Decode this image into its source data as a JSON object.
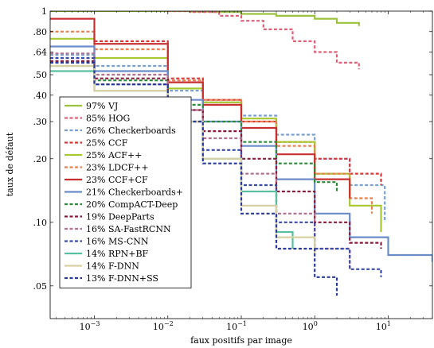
{
  "chart_data": {
    "type": "line",
    "xlabel": "faux positifs par image",
    "ylabel": "taux de défaut",
    "xscale": "log",
    "yscale": "log",
    "xlim": [
      0.00025,
      40
    ],
    "ylim": [
      0.035,
      1
    ],
    "x_ticks": [
      {
        "value": 0.001,
        "base": "10",
        "exp": "−3"
      },
      {
        "value": 0.01,
        "base": "10",
        "exp": "−2"
      },
      {
        "value": 0.1,
        "base": "10",
        "exp": "−1"
      },
      {
        "value": 1,
        "base": "10",
        "exp": "0"
      },
      {
        "value": 10,
        "base": "10",
        "exp": "1"
      }
    ],
    "y_ticks": [
      {
        "value": 1,
        "label": "1"
      },
      {
        "value": 0.8,
        "label": ".80"
      },
      {
        "value": 0.64,
        "label": ".64"
      },
      {
        "value": 0.5,
        "label": ".50"
      },
      {
        "value": 0.4,
        "label": ".40"
      },
      {
        "value": 0.3,
        "label": ".30"
      },
      {
        "value": 0.2,
        "label": ".20"
      },
      {
        "value": 0.1,
        "label": ".10"
      },
      {
        "value": 0.05,
        "label": ".05"
      }
    ],
    "legend_position": "lower-left",
    "grid": false,
    "series": [
      {
        "name": "97% VJ",
        "color": "#9bc23c",
        "dashed": false,
        "x": [
          0.00025,
          0.001,
          0.01,
          0.02,
          0.04,
          0.1,
          0.3,
          1,
          2,
          4
        ],
        "y": [
          1,
          1,
          1,
          0.995,
          0.99,
          0.97,
          0.95,
          0.92,
          0.88,
          0.85
        ]
      },
      {
        "name": "85% HOG",
        "color": "#e06078",
        "dashed": true,
        "x": [
          0.01,
          0.02,
          0.05,
          0.1,
          0.2,
          0.5,
          1,
          2,
          4
        ],
        "y": [
          1,
          0.99,
          0.95,
          0.9,
          0.82,
          0.72,
          0.64,
          0.57,
          0.53
        ]
      },
      {
        "name": "26% Checkerboards",
        "color": "#7aa0d0",
        "dashed": true,
        "x": [
          0.00025,
          0.001,
          0.01,
          0.03,
          0.1,
          0.3,
          1,
          3,
          9
        ],
        "y": [
          0.62,
          0.55,
          0.42,
          0.37,
          0.32,
          0.26,
          0.2,
          0.15,
          0.1
        ]
      },
      {
        "name": "25% CCF",
        "color": "#d83838",
        "dashed": true,
        "x": [
          0.001,
          0.01,
          0.03,
          0.1,
          0.3,
          1,
          3,
          8
        ],
        "y": [
          0.72,
          0.48,
          0.38,
          0.3,
          0.24,
          0.2,
          0.17,
          0.15
        ]
      },
      {
        "name": "25% ACF++",
        "color": "#a8c830",
        "dashed": false,
        "x": [
          0.00025,
          0.001,
          0.01,
          0.03,
          0.1,
          0.3,
          1,
          3,
          8
        ],
        "y": [
          0.74,
          0.6,
          0.43,
          0.37,
          0.31,
          0.24,
          0.17,
          0.12,
          0.09
        ]
      },
      {
        "name": "23% LDCF++",
        "color": "#e88050",
        "dashed": true,
        "x": [
          0.00025,
          0.001,
          0.01,
          0.03,
          0.1,
          0.3,
          1,
          3,
          6
        ],
        "y": [
          0.8,
          0.66,
          0.47,
          0.38,
          0.3,
          0.23,
          0.17,
          0.13,
          0.11
        ]
      },
      {
        "name": "23% CCF+CF",
        "color": "#c83030",
        "dashed": false,
        "x": [
          0.00025,
          0.001,
          0.01,
          0.03,
          0.1,
          0.3,
          1,
          3
        ],
        "y": [
          0.92,
          0.7,
          0.46,
          0.36,
          0.28,
          0.21,
          0.16,
          0.13
        ]
      },
      {
        "name": "21% Checkerboards+",
        "color": "#6a8cc8",
        "dashed": false,
        "x": [
          0.00025,
          0.001,
          0.01,
          0.03,
          0.1,
          0.3,
          1,
          3,
          10,
          40
        ],
        "y": [
          0.68,
          0.52,
          0.38,
          0.3,
          0.23,
          0.16,
          0.11,
          0.085,
          0.07,
          0.065
        ]
      },
      {
        "name": "20% CompACT-Deep",
        "color": "#2a8a3a",
        "dashed": true,
        "x": [
          0.00025,
          0.001,
          0.01,
          0.03,
          0.1,
          0.3,
          1,
          2
        ],
        "y": [
          0.55,
          0.47,
          0.36,
          0.3,
          0.24,
          0.19,
          0.155,
          0.14
        ]
      },
      {
        "name": "19% DeepParts",
        "color": "#8a1a3a",
        "dashed": true,
        "x": [
          0.00025,
          0.001,
          0.01,
          0.03,
          0.1,
          0.3,
          1,
          3,
          8
        ],
        "y": [
          0.58,
          0.48,
          0.34,
          0.27,
          0.2,
          0.14,
          0.1,
          0.08,
          0.075
        ]
      },
      {
        "name": "16% SA-FastRCNN",
        "color": "#b07090",
        "dashed": true,
        "x": [
          0.00025,
          0.001,
          0.01,
          0.03,
          0.1,
          0.3,
          1,
          3
        ],
        "y": [
          0.63,
          0.5,
          0.34,
          0.25,
          0.17,
          0.11,
          0.075,
          0.06
        ]
      },
      {
        "name": "16% MS-CNN",
        "color": "#3a4aa8",
        "dashed": true,
        "x": [
          0.00025,
          0.001,
          0.01,
          0.03,
          0.1,
          0.3,
          1,
          3,
          8
        ],
        "y": [
          0.6,
          0.45,
          0.3,
          0.22,
          0.15,
          0.1,
          0.075,
          0.06,
          0.055
        ]
      },
      {
        "name": "14% RPN+BF",
        "color": "#58c0a0",
        "dashed": false,
        "x": [
          0.00025,
          0.001,
          0.01,
          0.03,
          0.1,
          0.3,
          0.5
        ],
        "y": [
          0.52,
          0.42,
          0.3,
          0.2,
          0.14,
          0.09,
          0.075
        ]
      },
      {
        "name": "14% F-DNN",
        "color": "#d8d0a0",
        "dashed": false,
        "x": [
          0.00025,
          0.001,
          0.01,
          0.03,
          0.1,
          0.3,
          1
        ],
        "y": [
          0.55,
          0.42,
          0.3,
          0.2,
          0.12,
          0.085,
          0.07
        ]
      },
      {
        "name": "13% F-DNN+SS",
        "color": "#2a3a98",
        "dashed": true,
        "x": [
          0.00025,
          0.001,
          0.01,
          0.03,
          0.1,
          0.3,
          1,
          2
        ],
        "y": [
          0.57,
          0.45,
          0.3,
          0.19,
          0.11,
          0.075,
          0.055,
          0.045
        ]
      }
    ]
  }
}
